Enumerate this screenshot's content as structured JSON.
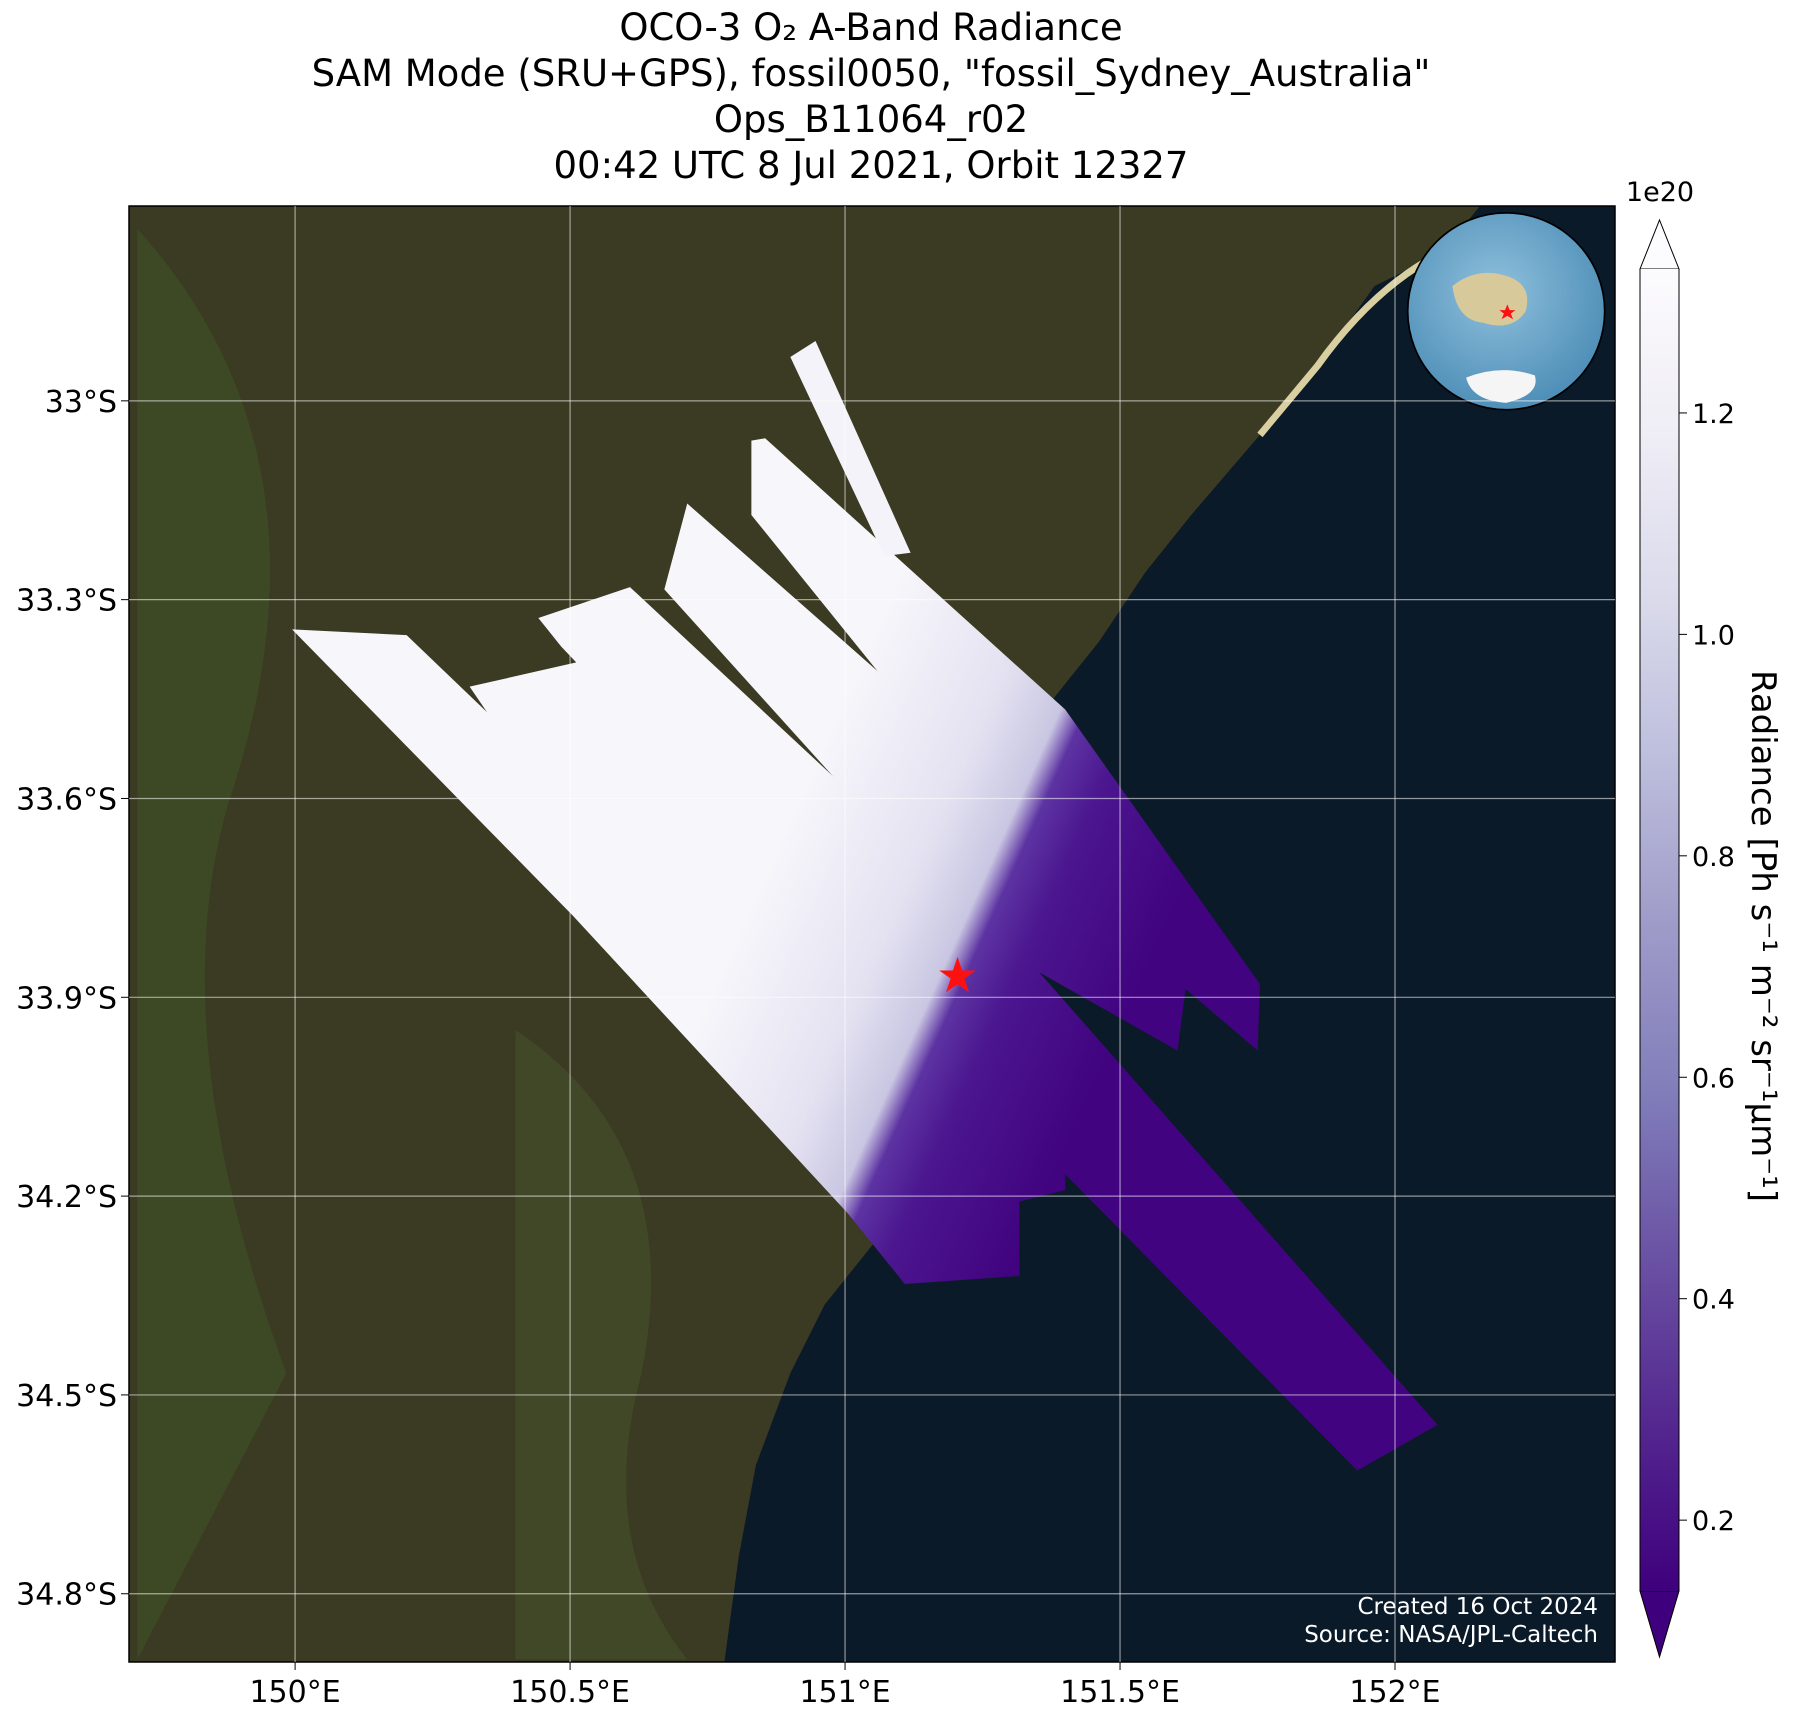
{
  "chart_data": {
    "type": "map",
    "title_lines": [
      "OCO-3 O₂ A-Band Radiance",
      "SAM Mode (SRU+GPS), fossil0050, \"fossil_Sydney_Australia\"",
      "Ops_B11064_r02",
      "00:42 UTC 8 Jul 2021, Orbit 12327"
    ],
    "xlim": [
      149.698,
      152.4
    ],
    "ylim": [
      -34.903,
      -32.706
    ],
    "xticks": [
      {
        "value": 150,
        "label": "150°E"
      },
      {
        "value": 150.5,
        "label": "150.5°E"
      },
      {
        "value": 151,
        "label": "151°E"
      },
      {
        "value": 151.5,
        "label": "151.5°E"
      },
      {
        "value": 152,
        "label": "152°E"
      }
    ],
    "yticks": [
      {
        "value": -33,
        "label": "33°S"
      },
      {
        "value": -33.3,
        "label": "33.3°S"
      },
      {
        "value": -33.6,
        "label": "33.6°S"
      },
      {
        "value": -33.9,
        "label": "33.9°S"
      },
      {
        "value": -34.2,
        "label": "34.2°S"
      },
      {
        "value": -34.5,
        "label": "34.5°S"
      },
      {
        "value": -34.8,
        "label": "34.8°S"
      }
    ],
    "grid": true,
    "colorbar": {
      "label": "Radiance [Ph s⁻¹ m⁻² sr⁻¹μm⁻¹]",
      "offset_label": "1e20",
      "clim": [
        0.136,
        1.33
      ],
      "ticks": [
        0.2,
        0.4,
        0.6,
        0.8,
        {
          "value": 1,
          "label": "1.0"
        },
        1.2
      ],
      "colors": [
        "#3f007d",
        "#54278f",
        "#6a51a3",
        "#807dba",
        "#9e9ac8",
        "#bcbddc",
        "#dadaeb",
        "#efedf5",
        "#fcfbfd"
      ]
    },
    "annotations": [
      "Created 16 Oct 2024",
      "Source: NASA/JPL-Caltech"
    ]
  }
}
